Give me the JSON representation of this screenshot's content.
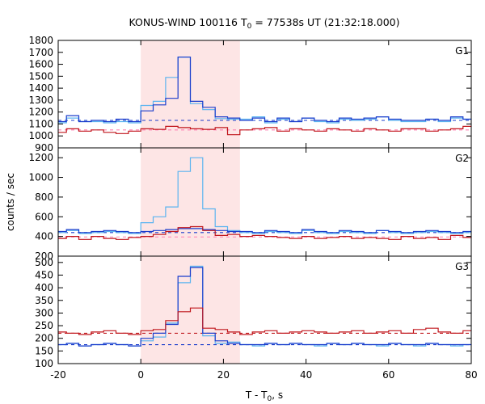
{
  "chart_data": {
    "type": "line",
    "title": {
      "prefix": "KONUS-WIND 100116 T",
      "sub": "0",
      "suffix": " = 77538s UT (21:32:18.000)"
    },
    "xlabel": {
      "prefix": "T - T",
      "sub": "0",
      "suffix": ", s"
    },
    "ylabel": "counts / sec",
    "xlim": [
      -20,
      80
    ],
    "xticks": [
      -20,
      0,
      20,
      40,
      60,
      80
    ],
    "highlight_interval": [
      0,
      24
    ],
    "colors": {
      "light_blue": "#5ab4f0",
      "blue": "#1a3ccc",
      "red": "#c0161c",
      "pink": "#ff80b4",
      "highlight": "#fde5e5"
    },
    "grid": false,
    "legend": "none",
    "panels": [
      {
        "label": "G1",
        "ylim": [
          900,
          1800
        ],
        "yticks": [
          900,
          1000,
          1100,
          1200,
          1300,
          1400,
          1500,
          1600,
          1700,
          1800
        ],
        "bins_x": [
          -21,
          -18,
          -15,
          -12,
          -9,
          -6,
          -3,
          0,
          3,
          6,
          9,
          12,
          15,
          18,
          21,
          24,
          27,
          30,
          33,
          36,
          39,
          42,
          45,
          48,
          51,
          54,
          57,
          60,
          63,
          66,
          69,
          72,
          75,
          78,
          81
        ],
        "series": [
          {
            "color_key": "light_blue",
            "values": [
              1110,
              1150,
              1120,
              1120,
              1110,
              1120,
              1110,
              1255,
              1290,
              1490,
              1660,
              1270,
              1220,
              1145,
              1140,
              1140,
              1160,
              1110,
              1140,
              1120,
              1150,
              1120,
              1110,
              1140,
              1130,
              1140,
              1160,
              1130,
              1120,
              1120,
              1140,
              1120,
              1150,
              1140
            ]
          },
          {
            "color_key": "blue",
            "values": [
              1120,
              1170,
              1120,
              1130,
              1120,
              1140,
              1120,
              1210,
              1260,
              1315,
              1660,
              1290,
              1240,
              1160,
              1150,
              1130,
              1150,
              1120,
              1150,
              1120,
              1150,
              1130,
              1120,
              1150,
              1140,
              1150,
              1160,
              1140,
              1130,
              1130,
              1140,
              1130,
              1160,
              1140
            ]
          },
          {
            "color_key": "red",
            "values": [
              1030,
              1060,
              1040,
              1050,
              1030,
              1020,
              1040,
              1060,
              1055,
              1080,
              1070,
              1060,
              1055,
              1070,
              1010,
              1050,
              1060,
              1070,
              1040,
              1060,
              1050,
              1040,
              1060,
              1050,
              1040,
              1060,
              1050,
              1040,
              1060,
              1060,
              1040,
              1050,
              1060,
              1080
            ]
          }
        ],
        "background_levels": [
          {
            "color_key": "blue",
            "value": 1130
          },
          {
            "color_key": "pink",
            "value": 1050
          }
        ]
      },
      {
        "label": "G2",
        "ylim": [
          200,
          1300
        ],
        "yticks": [
          200,
          400,
          600,
          800,
          1000,
          1200
        ],
        "bins_x": [
          -21,
          -18,
          -15,
          -12,
          -9,
          -6,
          -3,
          0,
          3,
          6,
          9,
          12,
          15,
          18,
          21,
          24,
          27,
          30,
          33,
          36,
          39,
          42,
          45,
          48,
          51,
          54,
          57,
          60,
          63,
          66,
          69,
          72,
          75,
          78,
          81
        ],
        "series": [
          {
            "color_key": "light_blue",
            "values": [
              440,
              460,
              430,
              440,
              450,
              440,
              430,
              540,
              600,
              700,
              1060,
              1200,
              680,
              500,
              460,
              440,
              430,
              450,
              440,
              430,
              460,
              440,
              430,
              450,
              440,
              430,
              460,
              440,
              430,
              440,
              450,
              440,
              430,
              440
            ]
          },
          {
            "color_key": "blue",
            "values": [
              450,
              470,
              440,
              450,
              460,
              450,
              440,
              450,
              460,
              470,
              480,
              480,
              470,
              460,
              450,
              450,
              440,
              460,
              450,
              440,
              470,
              450,
              440,
              460,
              450,
              440,
              460,
              450,
              440,
              450,
              460,
              450,
              440,
              450
            ]
          },
          {
            "color_key": "red",
            "values": [
              380,
              400,
              370,
              400,
              380,
              370,
              390,
              400,
              420,
              450,
              490,
              500,
              460,
              410,
              420,
              400,
              410,
              400,
              390,
              380,
              400,
              380,
              390,
              400,
              380,
              390,
              380,
              370,
              400,
              380,
              390,
              370,
              410,
              390
            ]
          }
        ],
        "background_levels": [
          {
            "color_key": "blue",
            "value": 440
          },
          {
            "color_key": "pink",
            "value": 395
          }
        ]
      },
      {
        "label": "G3",
        "ylim": [
          100,
          525
        ],
        "yticks": [
          100,
          150,
          200,
          250,
          300,
          350,
          400,
          450,
          500
        ],
        "bins_x": [
          -21,
          -18,
          -15,
          -12,
          -9,
          -6,
          -3,
          0,
          3,
          6,
          9,
          12,
          15,
          18,
          21,
          24,
          27,
          30,
          33,
          36,
          39,
          42,
          45,
          48,
          51,
          54,
          57,
          60,
          63,
          66,
          69,
          72,
          75,
          78,
          81
        ],
        "series": [
          {
            "color_key": "light_blue",
            "values": [
              175,
              180,
              170,
              175,
              180,
              175,
              170,
              190,
              205,
              260,
              420,
              485,
              210,
              180,
              185,
              175,
              170,
              180,
              175,
              180,
              175,
              170,
              180,
              175,
              180,
              175,
              170,
              180,
              175,
              170,
              180,
              175,
              170,
              175
            ]
          },
          {
            "color_key": "blue",
            "values": [
              175,
              180,
              170,
              175,
              180,
              175,
              170,
              200,
              220,
              255,
              445,
              480,
              220,
              190,
              180,
              175,
              175,
              180,
              175,
              180,
              175,
              175,
              180,
              175,
              180,
              175,
              175,
              180,
              175,
              175,
              180,
              175,
              175,
              175
            ]
          },
          {
            "color_key": "red",
            "values": [
              225,
              220,
              215,
              225,
              230,
              220,
              215,
              230,
              235,
              270,
              305,
              320,
              240,
              235,
              225,
              215,
              225,
              230,
              220,
              225,
              230,
              225,
              220,
              225,
              230,
              220,
              225,
              230,
              220,
              235,
              240,
              225,
              220,
              230
            ]
          }
        ],
        "background_levels": [
          {
            "color_key": "red",
            "value": 220
          },
          {
            "color_key": "blue",
            "value": 175
          }
        ]
      }
    ]
  }
}
